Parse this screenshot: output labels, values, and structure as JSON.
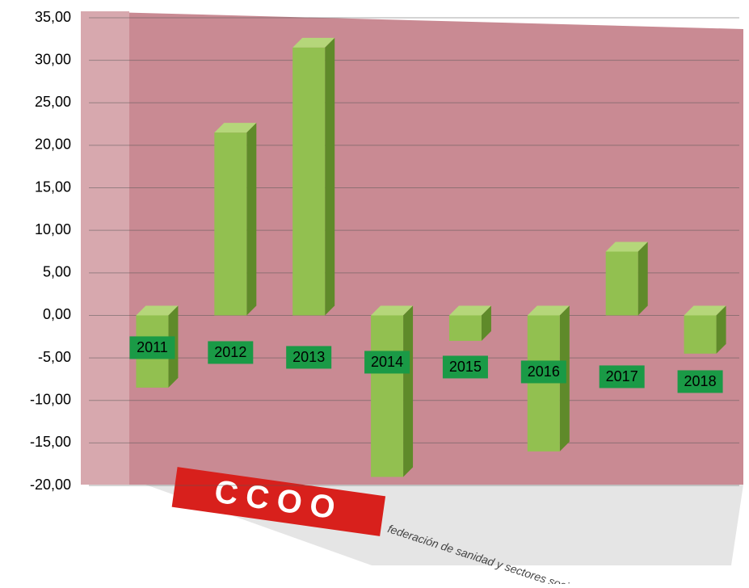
{
  "chart_data": {
    "type": "bar3d",
    "categories": [
      "2011",
      "2012",
      "2013",
      "2014",
      "2015",
      "2016",
      "2017",
      "2018"
    ],
    "values": [
      -8.5,
      21.5,
      31.5,
      -19,
      -3,
      -16,
      7.5,
      -4.5
    ],
    "color": "#92c050",
    "ylim": [
      -20,
      35
    ],
    "yticks": [
      {
        "value": -20,
        "label": "-20,00"
      },
      {
        "value": -15,
        "label": "-15,00"
      },
      {
        "value": -10,
        "label": "-10,00"
      },
      {
        "value": -5,
        "label": "-5,00"
      },
      {
        "value": 0,
        "label": "0,00"
      },
      {
        "value": 5,
        "label": "5,00"
      },
      {
        "value": 10,
        "label": "10,00"
      },
      {
        "value": 15,
        "label": "15,00"
      },
      {
        "value": 20,
        "label": "20,00"
      },
      {
        "value": 25,
        "label": "25,00"
      },
      {
        "value": 30,
        "label": "30,00"
      },
      {
        "value": 35,
        "label": "35,00"
      }
    ],
    "grid": true
  },
  "logo": {
    "text": "CCOO",
    "caption": "federación de sanidad y sectores sociosanitarios"
  }
}
